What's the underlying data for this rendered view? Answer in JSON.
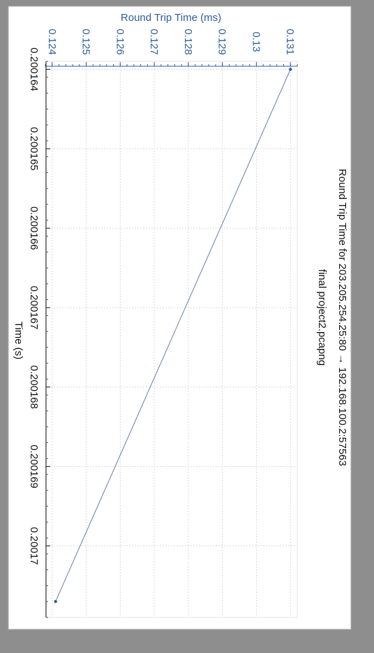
{
  "colors": {
    "backdrop": "#8e8e8e",
    "paper": "#ffffff",
    "y_axis": "#2e5d9a",
    "x_axis": "#111111",
    "series": "#5f7fb3",
    "grid": "#d8d8d8"
  },
  "chart_data": {
    "type": "line",
    "orientation": "rotated 90 degrees clockwise",
    "title": "Round Trip Time for 203.205.254.25:80 → 192.168.100.2:57563",
    "subtitle": "final project2.pcapng",
    "xlabel": "Time (s)",
    "ylabel": "Round Trip Time (ms)",
    "xlim": [
      0.2001639,
      0.2001709
    ],
    "ylim": [
      0.1238,
      0.1312
    ],
    "x_ticks": [
      "0.200164",
      "0.200165",
      "0.200166",
      "0.200167",
      "0.200168",
      "0.200169",
      "0.20017"
    ],
    "x_tick_values": [
      0.200164,
      0.200165,
      0.200166,
      0.200167,
      0.200168,
      0.200169,
      0.20017
    ],
    "y_ticks": [
      "0.124",
      "0.125",
      "0.126",
      "0.127",
      "0.128",
      "0.129",
      "0.13",
      "0.131"
    ],
    "y_tick_values": [
      0.124,
      0.125,
      0.126,
      0.127,
      0.128,
      0.129,
      0.13,
      0.131
    ],
    "grid": true,
    "legend": "none",
    "series": [
      {
        "x": [
          0.200164,
          0.2001707
        ],
        "y": [
          0.131,
          0.1241
        ]
      }
    ]
  }
}
